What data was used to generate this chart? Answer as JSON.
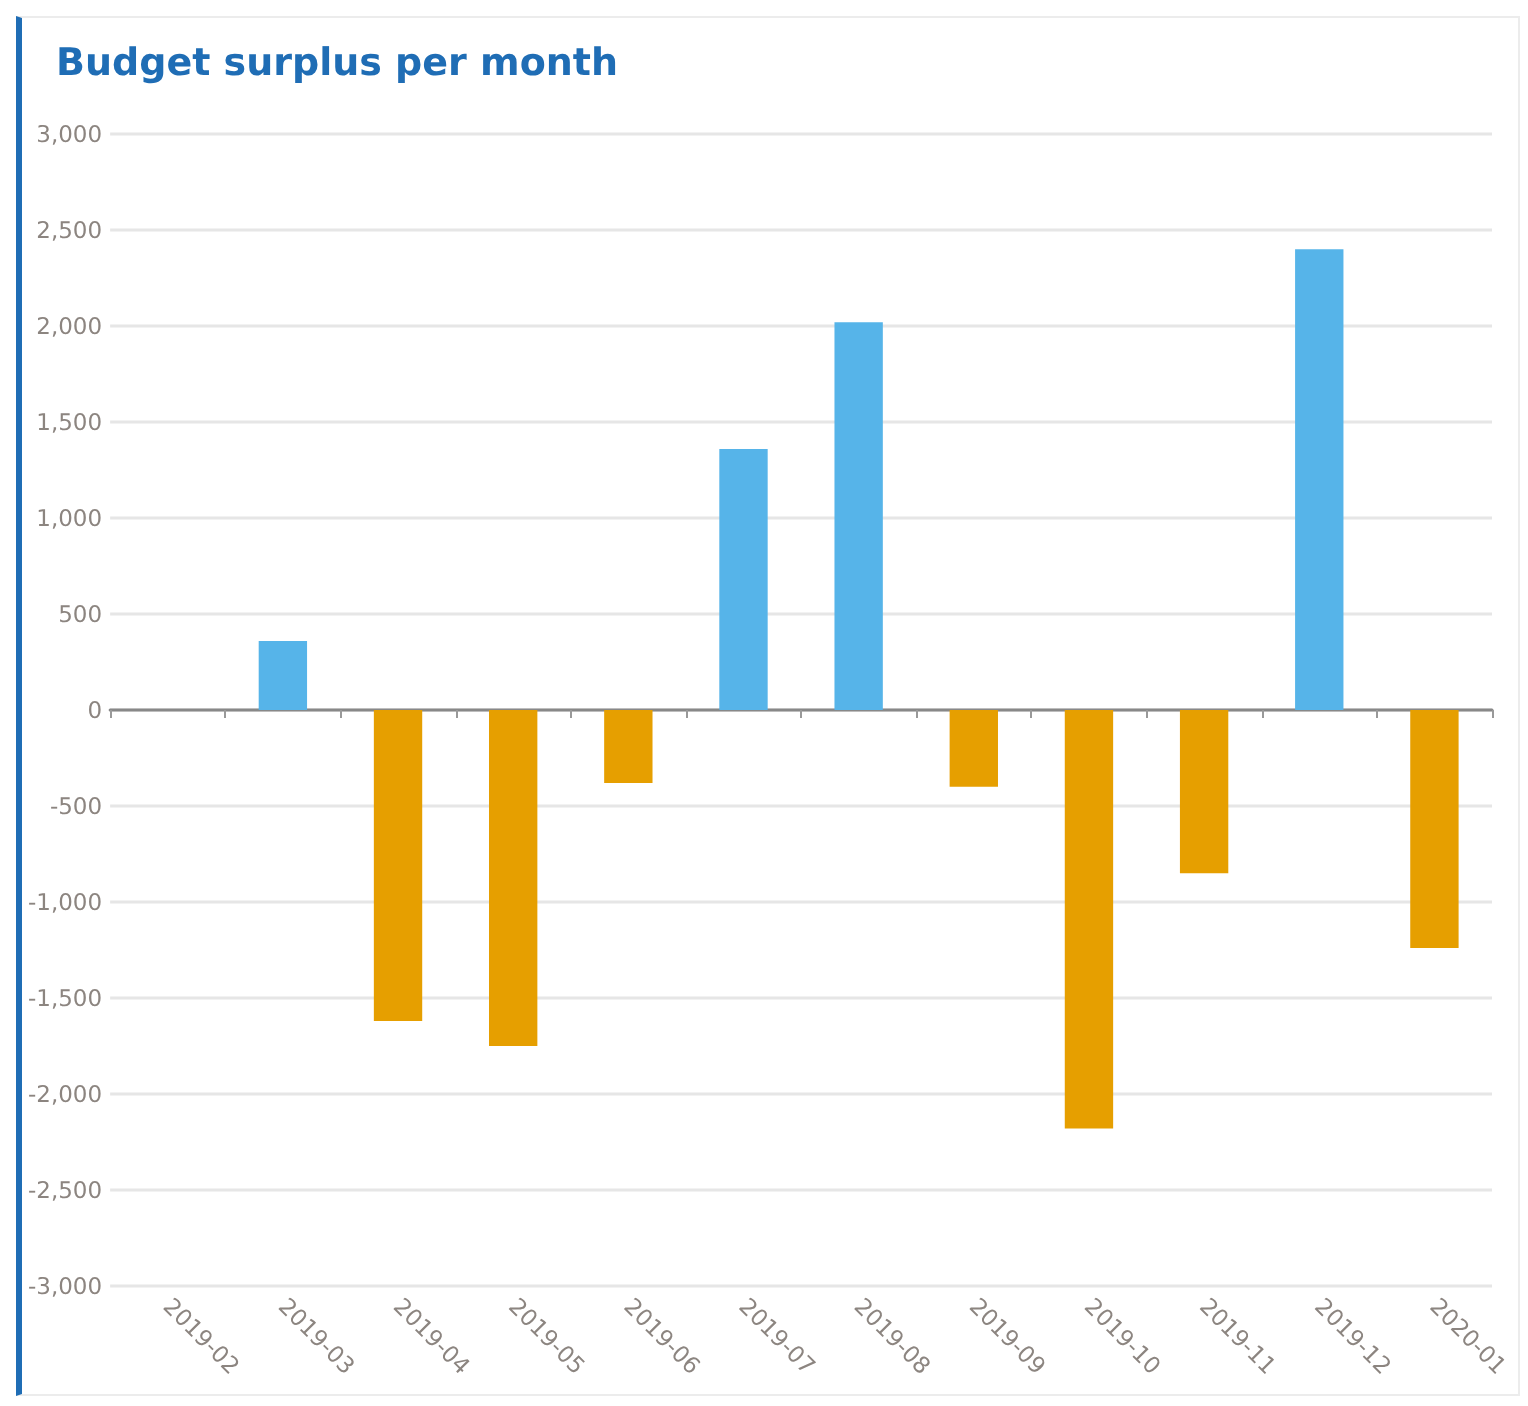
{
  "chart_data": {
    "type": "bar",
    "title": "Budget surplus per month",
    "categories": [
      "2019-02",
      "2019-03",
      "2019-04",
      "2019-05",
      "2019-06",
      "2019-07",
      "2019-08",
      "2019-09",
      "2019-10",
      "2019-11",
      "2019-12",
      "2020-01"
    ],
    "values": [
      null,
      360,
      -1620,
      -1750,
      -380,
      1360,
      2020,
      -400,
      -2180,
      -850,
      2400,
      -1240
    ],
    "colors": [
      "#56b4e9",
      "#56b4e9",
      "#e69f00",
      "#e69f00",
      "#e69f00",
      "#56b4e9",
      "#56b4e9",
      "#e69f00",
      "#e69f00",
      "#e69f00",
      "#56b4e9",
      "#e69f00"
    ],
    "ylim": [
      -3000,
      3000
    ],
    "yticks": [
      {
        "value": -3000,
        "label": "-3,000"
      },
      {
        "value": -2500,
        "label": "-2,500"
      },
      {
        "value": -2000,
        "label": "-2,000"
      },
      {
        "value": -1500,
        "label": "-1,500"
      },
      {
        "value": -1000,
        "label": "-1,000"
      },
      {
        "value": -500,
        "label": "-500"
      },
      0,
      500,
      {
        "value": 1000,
        "label": "1,000"
      },
      {
        "value": 1500,
        "label": "1,500"
      },
      {
        "value": 2000,
        "label": "2,000"
      },
      {
        "value": 2500,
        "label": "2,500"
      },
      {
        "value": 3000,
        "label": "3,000"
      }
    ],
    "grid": "y"
  }
}
